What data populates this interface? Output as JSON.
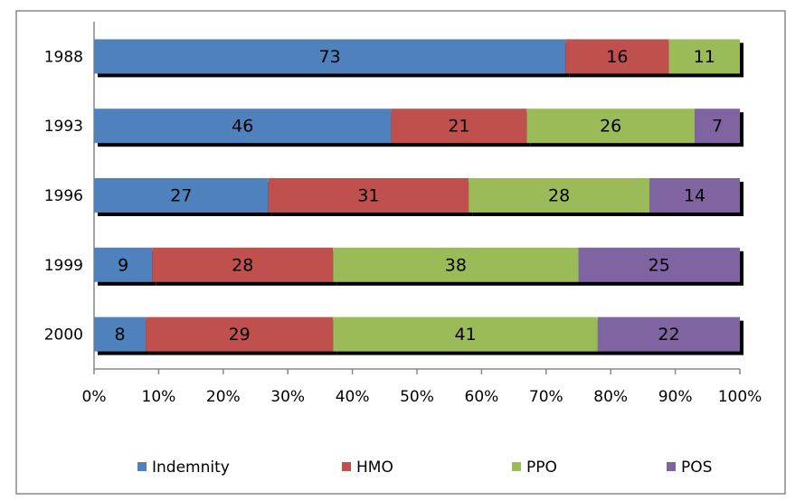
{
  "chart_data": {
    "type": "bar",
    "orientation": "horizontal",
    "stacked": true,
    "categories": [
      "1988",
      "1993",
      "1996",
      "1999",
      "2000"
    ],
    "series": [
      {
        "name": "Indemnity",
        "color": "#4f81bd",
        "values": [
          73,
          46,
          27,
          9,
          8
        ]
      },
      {
        "name": "HMO",
        "color": "#c0504d",
        "values": [
          16,
          21,
          31,
          28,
          29
        ]
      },
      {
        "name": "PPO",
        "color": "#9bbb59",
        "values": [
          11,
          26,
          28,
          38,
          41
        ]
      },
      {
        "name": "POS",
        "color": "#8064a2",
        "values": [
          null,
          7,
          14,
          25,
          22
        ]
      }
    ],
    "xlim": [
      0,
      100
    ],
    "xticks": [
      {
        "value": 0,
        "label": "0%"
      },
      {
        "value": 10,
        "label": "10%"
      },
      {
        "value": 20,
        "label": "20%"
      },
      {
        "value": 30,
        "label": "30%"
      },
      {
        "value": 40,
        "label": "40%"
      },
      {
        "value": 50,
        "label": "50%"
      },
      {
        "value": 60,
        "label": "60%"
      },
      {
        "value": 70,
        "label": "70%"
      },
      {
        "value": 80,
        "label": "80%"
      },
      {
        "value": 90,
        "label": "90%"
      },
      {
        "value": 100,
        "label": "100%"
      }
    ],
    "legend": "bottom",
    "data_labels": true
  }
}
